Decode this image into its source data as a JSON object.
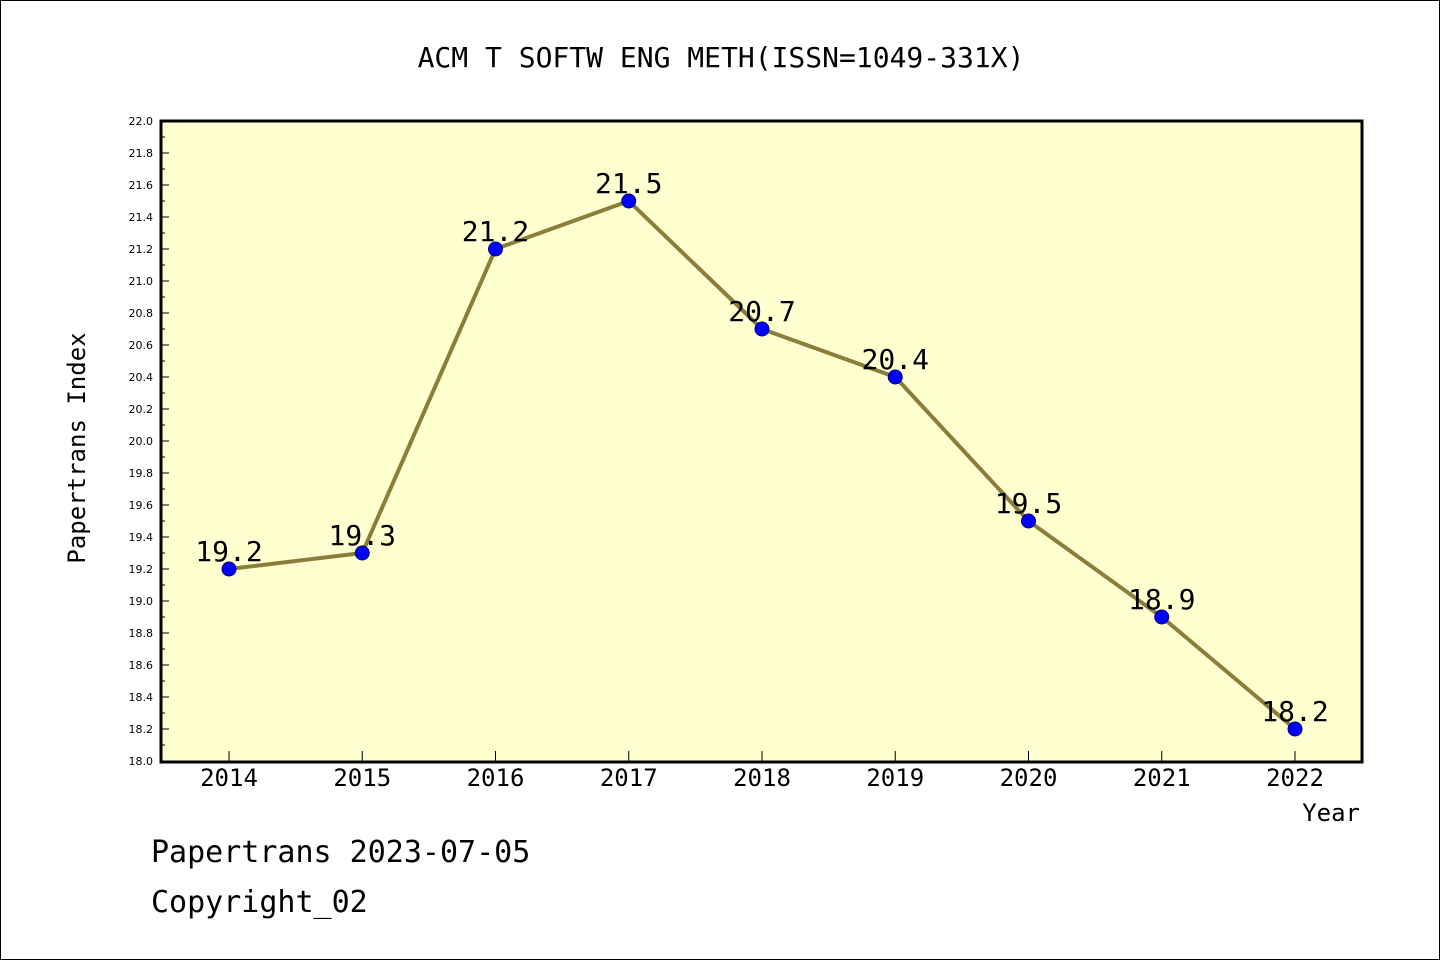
{
  "chart_data": {
    "type": "line",
    "title": "ACM T SOFTW ENG METH(ISSN=1049-331X)",
    "xlabel": "Year",
    "ylabel": "Papertrans Index",
    "categories": [
      "2014",
      "2015",
      "2016",
      "2017",
      "2018",
      "2019",
      "2020",
      "2021",
      "2022"
    ],
    "series": [
      {
        "values": [
          19.2,
          19.3,
          21.2,
          21.5,
          20.7,
          20.4,
          19.5,
          18.9,
          18.2
        ],
        "data_labels": [
          "19.2",
          "19.3",
          "21.2",
          "21.5",
          "20.7",
          "20.4",
          "19.5",
          "18.9",
          "18.2"
        ]
      }
    ],
    "ylim": [
      18.0,
      22.0
    ],
    "yticks": [
      "18.0",
      "18.2",
      "18.4",
      "18.6",
      "18.8",
      "19.0",
      "19.2",
      "19.4",
      "19.6",
      "19.8",
      "20.0",
      "20.2",
      "20.4",
      "20.6",
      "20.8",
      "21.0",
      "21.2",
      "21.4",
      "21.6",
      "21.8",
      "22.0"
    ],
    "grid": false,
    "colors": {
      "plot_background": "#ffffd0",
      "line": "#8b7d3a",
      "marker_fill": "#0000ff",
      "marker_edge": "#000080"
    }
  },
  "footer": {
    "line1": "Papertrans 2023-07-05",
    "line2": "Copyright_02"
  }
}
